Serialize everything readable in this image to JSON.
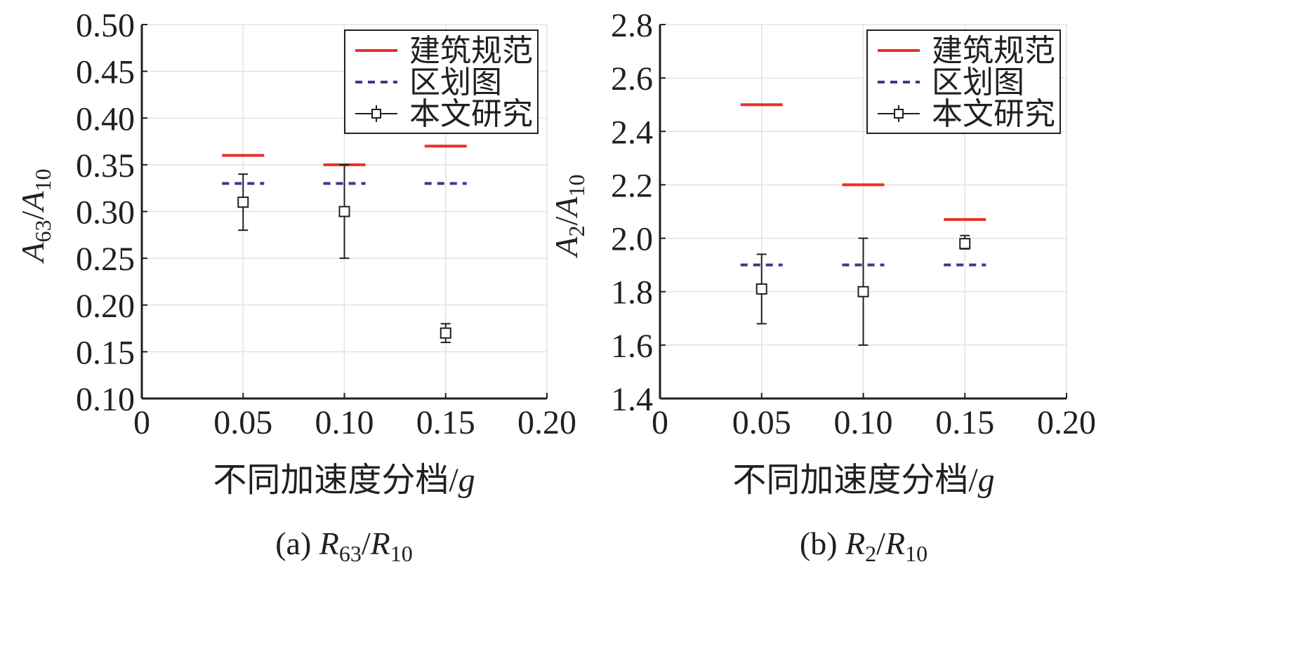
{
  "chart_data": [
    {
      "type": "scatter",
      "caption": {
        "prefix": "(a) ",
        "num_base": "R",
        "num_sub": "63",
        "slash": "/",
        "den_base": "R",
        "den_sub": "10"
      },
      "ylabel": {
        "num_base": "A",
        "num_sub": "63",
        "slash": "/",
        "den_base": "A",
        "den_sub": "10"
      },
      "xlabel": {
        "text": "不同加速度分档/",
        "unit": "g"
      },
      "xlim": [
        0,
        0.2
      ],
      "ylim": [
        0.1,
        0.5
      ],
      "xticks": [
        0,
        0.05,
        0.1,
        0.15,
        0.2
      ],
      "xtick_labels": [
        "0",
        "0.05",
        "0.10",
        "0.15",
        "0.20"
      ],
      "yticks": [
        0.1,
        0.15,
        0.2,
        0.25,
        0.3,
        0.35,
        0.4,
        0.45,
        0.5
      ],
      "ytick_labels": [
        "0.10",
        "0.15",
        "0.20",
        "0.25",
        "0.30",
        "0.35",
        "0.40",
        "0.45",
        "0.50"
      ],
      "grid": true,
      "legend": {
        "position": "top-right",
        "entries": [
          {
            "label": "建筑规范",
            "style": "solid",
            "color": "#e8312a"
          },
          {
            "label": "区划图",
            "style": "dashed",
            "color": "#3a3a8c"
          },
          {
            "label": "本文研究",
            "style": "errorbar-square",
            "color": "#231f20"
          }
        ]
      },
      "series": [
        {
          "name": "建筑规范",
          "kind": "hline",
          "color": "#e8312a",
          "x": [
            0.05,
            0.1,
            0.15
          ],
          "values": [
            0.36,
            0.35,
            0.37
          ]
        },
        {
          "name": "区划图",
          "kind": "hline-dashed",
          "color": "#3a3a8c",
          "x": [
            0.05,
            0.1,
            0.15
          ],
          "values": [
            0.33,
            0.33,
            0.33
          ]
        },
        {
          "name": "本文研究",
          "kind": "errorbar",
          "color": "#231f20",
          "x": [
            0.05,
            0.1,
            0.15
          ],
          "values": [
            0.31,
            0.3,
            0.17
          ],
          "lower": [
            0.28,
            0.25,
            0.16
          ],
          "upper": [
            0.34,
            0.35,
            0.18
          ]
        }
      ]
    },
    {
      "type": "scatter",
      "caption": {
        "prefix": "(b) ",
        "num_base": "R",
        "num_sub": "2",
        "slash": "/",
        "den_base": "R",
        "den_sub": "10"
      },
      "ylabel": {
        "num_base": "A",
        "num_sub": "2",
        "slash": "/",
        "den_base": "A",
        "den_sub": "10"
      },
      "xlabel": {
        "text": "不同加速度分档/",
        "unit": "g"
      },
      "xlim": [
        0,
        0.2
      ],
      "ylim": [
        1.4,
        2.8
      ],
      "xticks": [
        0,
        0.05,
        0.1,
        0.15,
        0.2
      ],
      "xtick_labels": [
        "0",
        "0.05",
        "0.10",
        "0.15",
        "0.20"
      ],
      "yticks": [
        1.4,
        1.6,
        1.8,
        2.0,
        2.2,
        2.4,
        2.6,
        2.8
      ],
      "ytick_labels": [
        "1.4",
        "1.6",
        "1.8",
        "2.0",
        "2.2",
        "2.4",
        "2.6",
        "2.8"
      ],
      "grid": true,
      "legend": {
        "position": "top-right",
        "entries": [
          {
            "label": "建筑规范",
            "style": "solid",
            "color": "#e8312a"
          },
          {
            "label": "区划图",
            "style": "dashed",
            "color": "#3a3a8c"
          },
          {
            "label": "本文研究",
            "style": "errorbar-square",
            "color": "#231f20"
          }
        ]
      },
      "series": [
        {
          "name": "建筑规范",
          "kind": "hline",
          "color": "#e8312a",
          "x": [
            0.05,
            0.1,
            0.15
          ],
          "values": [
            2.5,
            2.2,
            2.07
          ]
        },
        {
          "name": "区划图",
          "kind": "hline-dashed",
          "color": "#3a3a8c",
          "x": [
            0.05,
            0.1,
            0.15
          ],
          "values": [
            1.9,
            1.9,
            1.9
          ]
        },
        {
          "name": "本文研究",
          "kind": "errorbar",
          "color": "#231f20",
          "x": [
            0.05,
            0.1,
            0.15
          ],
          "values": [
            1.81,
            1.8,
            1.98
          ],
          "lower": [
            1.68,
            1.6,
            1.96
          ],
          "upper": [
            1.94,
            2.0,
            2.01
          ]
        }
      ]
    }
  ]
}
